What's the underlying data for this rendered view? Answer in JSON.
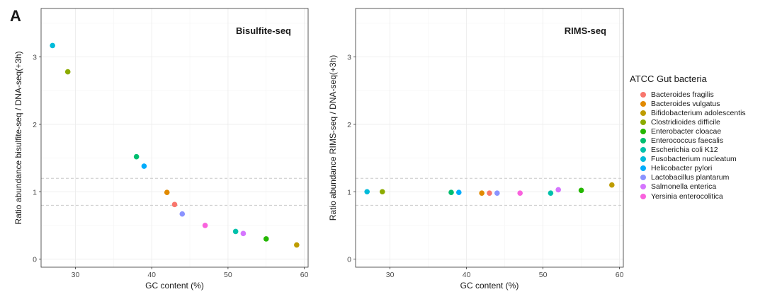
{
  "figure": {
    "panel_label": "A"
  },
  "legend": {
    "title": "ATCC Gut bacteria",
    "items": [
      {
        "name": "Bacteroides fragilis",
        "color": "#F8766D"
      },
      {
        "name": "Bacteroides vulgatus",
        "color": "#E18A00"
      },
      {
        "name": "Bifidobacterium adolescentis",
        "color": "#BE9C00"
      },
      {
        "name": "Clostridioides difficile",
        "color": "#8CAB00"
      },
      {
        "name": "Enterobacter cloacae",
        "color": "#24B700"
      },
      {
        "name": "Enterococcus faecalis",
        "color": "#00BE70"
      },
      {
        "name": "Escherichia coli K12",
        "color": "#00C1AB"
      },
      {
        "name": "Fusobacterium nucleatum",
        "color": "#00BBDA"
      },
      {
        "name": "Helicobacter pylori",
        "color": "#00ACFC"
      },
      {
        "name": "Lactobacillus plantarum",
        "color": "#8B93FF"
      },
      {
        "name": "Salmonella enterica",
        "color": "#D575FE"
      },
      {
        "name": "Yersinia enterocolitica",
        "color": "#F962DD"
      }
    ]
  },
  "chart_data": [
    {
      "type": "scatter",
      "title": "Bisulfite-seq",
      "xlabel": "GC content (%)",
      "ylabel": "Ratio abundance bisulfite-seq / DNA-seq(+3h)",
      "xlim": [
        25.5,
        60.5
      ],
      "ylim": [
        -0.12,
        3.72
      ],
      "xticks": [
        30,
        40,
        50,
        60
      ],
      "yticks": [
        0,
        1,
        2,
        3
      ],
      "hlines": [
        0.8,
        1.2
      ],
      "points": [
        {
          "species": "Bacteroides fragilis",
          "x": 43,
          "y": 0.81
        },
        {
          "species": "Bacteroides vulgatus",
          "x": 42,
          "y": 0.99
        },
        {
          "species": "Bifidobacterium adolescentis",
          "x": 59,
          "y": 0.21
        },
        {
          "species": "Clostridioides difficile",
          "x": 29,
          "y": 2.78
        },
        {
          "species": "Enterobacter cloacae",
          "x": 55,
          "y": 0.3
        },
        {
          "species": "Enterococcus faecalis",
          "x": 38,
          "y": 1.52
        },
        {
          "species": "Escherichia coli K12",
          "x": 51,
          "y": 0.41
        },
        {
          "species": "Fusobacterium nucleatum",
          "x": 27,
          "y": 3.17
        },
        {
          "species": "Helicobacter pylori",
          "x": 39,
          "y": 1.38
        },
        {
          "species": "Lactobacillus plantarum",
          "x": 44,
          "y": 0.67
        },
        {
          "species": "Salmonella enterica",
          "x": 52,
          "y": 0.38
        },
        {
          "species": "Yersinia enterocolitica",
          "x": 47,
          "y": 0.5
        }
      ]
    },
    {
      "type": "scatter",
      "title": "RIMS-seq",
      "xlabel": "GC content (%)",
      "ylabel": "Ratio abundance RIMS-seq / DNA-seq(+3h)",
      "xlim": [
        25.5,
        60.5
      ],
      "ylim": [
        -0.12,
        3.72
      ],
      "xticks": [
        30,
        40,
        50,
        60
      ],
      "yticks": [
        0,
        1,
        2,
        3
      ],
      "hlines": [
        0.8,
        1.2
      ],
      "points": [
        {
          "species": "Bacteroides fragilis",
          "x": 43,
          "y": 0.98
        },
        {
          "species": "Bacteroides vulgatus",
          "x": 42,
          "y": 0.98
        },
        {
          "species": "Bifidobacterium adolescentis",
          "x": 59,
          "y": 1.1
        },
        {
          "species": "Clostridioides difficile",
          "x": 29,
          "y": 1.0
        },
        {
          "species": "Enterobacter cloacae",
          "x": 55,
          "y": 1.02
        },
        {
          "species": "Enterococcus faecalis",
          "x": 38,
          "y": 0.99
        },
        {
          "species": "Escherichia coli K12",
          "x": 51,
          "y": 0.98
        },
        {
          "species": "Fusobacterium nucleatum",
          "x": 27,
          "y": 1.0
        },
        {
          "species": "Helicobacter pylori",
          "x": 39,
          "y": 0.99
        },
        {
          "species": "Lactobacillus plantarum",
          "x": 44,
          "y": 0.98
        },
        {
          "species": "Salmonella enterica",
          "x": 52,
          "y": 1.03
        },
        {
          "species": "Yersinia enterocolitica",
          "x": 47,
          "y": 0.98
        }
      ]
    }
  ]
}
